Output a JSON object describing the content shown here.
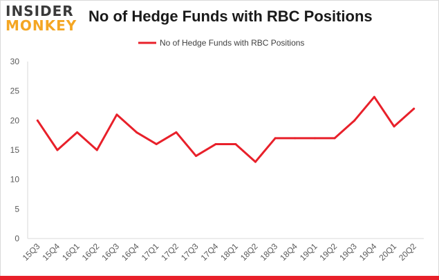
{
  "logo": {
    "top": "INSIDER",
    "bottom": "MONKEY"
  },
  "chart_data": {
    "type": "line",
    "title": "No of Hedge Funds with RBC Positions",
    "xlabel": "",
    "ylabel": "",
    "categories": [
      "15Q3",
      "15Q4",
      "16Q1",
      "16Q2",
      "16Q3",
      "16Q4",
      "17Q1",
      "17Q2",
      "17Q3",
      "17Q4",
      "18Q1",
      "18Q2",
      "18Q3",
      "18Q4",
      "19Q1",
      "19Q2",
      "19Q3",
      "19Q4",
      "20Q1",
      "20Q2"
    ],
    "series": [
      {
        "name": "No of Hedge Funds with RBC Positions",
        "values": [
          20,
          15,
          18,
          15,
          21,
          18,
          16,
          18,
          14,
          16,
          16,
          13,
          17,
          17,
          17,
          17,
          20,
          24,
          19,
          22
        ],
        "color": "#e8202a"
      }
    ],
    "ylim": [
      0,
      30
    ],
    "yticks": [
      0,
      5,
      10,
      15,
      20,
      25,
      30
    ],
    "grid": false,
    "legend_position": "top-center"
  }
}
